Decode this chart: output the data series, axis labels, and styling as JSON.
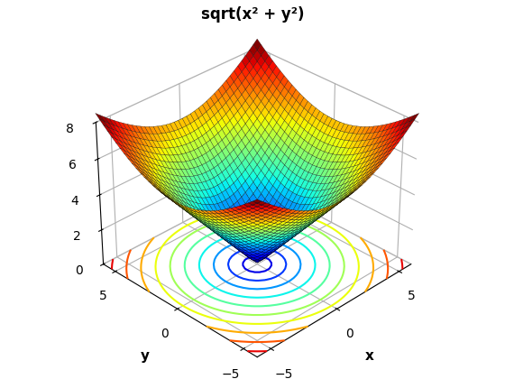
{
  "title": "sqrt(x² + y²)",
  "xlabel": "x",
  "ylabel": "y",
  "x_range": [
    -6,
    6
  ],
  "y_range": [
    -6,
    6
  ],
  "n_points": 40,
  "colormap": "jet",
  "contour_levels": 10,
  "zlim": [
    0,
    8
  ],
  "z_ticks": [
    0,
    2,
    4,
    6,
    8
  ],
  "elev": 32,
  "azim": -135,
  "title_fontsize": 12,
  "label_fontsize": 11,
  "background_color": "#ffffff",
  "x_ticks": [
    -5,
    0,
    5
  ],
  "y_ticks": [
    -5,
    0,
    5
  ],
  "surf_linewidth": 0.2,
  "surf_edgecolor": "black"
}
